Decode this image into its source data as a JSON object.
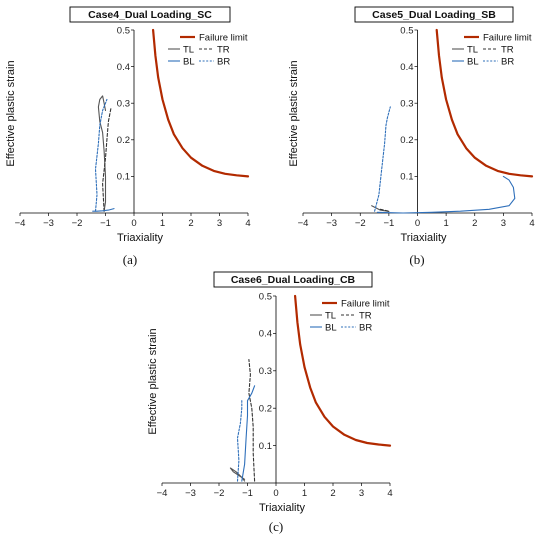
{
  "chart_data": [
    {
      "type": "line",
      "title": "Case4_Dual Loading_SC",
      "caption": "(a)",
      "xlabel": "Triaxiality",
      "ylabel": "Effective plastic strain",
      "xlim": [
        -4,
        4
      ],
      "ylim": [
        0,
        0.5
      ],
      "xticks": [
        -4,
        -3,
        -2,
        -1,
        0,
        1,
        2,
        3,
        4
      ],
      "yticks": [
        0.1,
        0.2,
        0.3,
        0.4,
        0.5
      ],
      "grid": false,
      "legend": {
        "placement": "top-right"
      },
      "series": [
        {
          "name": "Failure limit",
          "color": "#b22a00",
          "style": "solid",
          "x": [
            0.67,
            0.75,
            0.85,
            1.0,
            1.2,
            1.4,
            1.7,
            2.0,
            2.4,
            2.8,
            3.2,
            3.6,
            4.0
          ],
          "y": [
            0.5,
            0.43,
            0.37,
            0.31,
            0.255,
            0.215,
            0.177,
            0.151,
            0.129,
            0.115,
            0.107,
            0.103,
            0.1
          ]
        },
        {
          "name": "TL",
          "color": "#555555",
          "style": "solid",
          "x": [
            -1.05,
            -1.0,
            -1.0,
            -1.05,
            -1.1,
            -1.2,
            -1.25,
            -1.2,
            -1.1,
            -1.05,
            -1.0
          ],
          "y": [
            0.005,
            0.03,
            0.1,
            0.17,
            0.22,
            0.25,
            0.29,
            0.31,
            0.32,
            0.3,
            0.28
          ]
        },
        {
          "name": "TR",
          "color": "#333333",
          "style": "dashed",
          "x": [
            -1.05,
            -1.1,
            -1.0,
            -0.95,
            -0.9,
            -0.8
          ],
          "y": [
            0.005,
            0.08,
            0.15,
            0.2,
            0.25,
            0.29
          ]
        },
        {
          "name": "BL",
          "color": "#2e6fba",
          "style": "solid",
          "x": [
            -1.45,
            -1.3,
            -1.1,
            -0.9,
            -0.7
          ],
          "y": [
            0.005,
            0.005,
            0.006,
            0.008,
            0.012
          ]
        },
        {
          "name": "BR",
          "color": "#2e6fba",
          "style": "dotted",
          "x": [
            -1.35,
            -1.3,
            -1.35,
            -1.25,
            -1.2,
            -1.1,
            -0.95
          ],
          "y": [
            0.005,
            0.05,
            0.12,
            0.19,
            0.24,
            0.28,
            0.31
          ]
        }
      ]
    },
    {
      "type": "line",
      "title": "Case5_Dual Loading_SB",
      "caption": "(b)",
      "xlabel": "Triaxiality",
      "ylabel": "Effective plastic strain",
      "xlim": [
        -4,
        4
      ],
      "ylim": [
        0,
        0.5
      ],
      "xticks": [
        -4,
        -3,
        -2,
        -1,
        0,
        1,
        2,
        3,
        4
      ],
      "yticks": [
        0.1,
        0.2,
        0.3,
        0.4,
        0.5
      ],
      "grid": false,
      "legend": {
        "placement": "top-right"
      },
      "series": [
        {
          "name": "Failure limit",
          "color": "#b22a00",
          "style": "solid",
          "x": [
            0.67,
            0.75,
            0.85,
            1.0,
            1.2,
            1.4,
            1.7,
            2.0,
            2.4,
            2.8,
            3.2,
            3.6,
            4.0
          ],
          "y": [
            0.5,
            0.43,
            0.37,
            0.31,
            0.255,
            0.215,
            0.177,
            0.151,
            0.129,
            0.115,
            0.107,
            0.103,
            0.1
          ]
        },
        {
          "name": "TL",
          "color": "#555555",
          "style": "solid",
          "x": [
            -1.6,
            -1.3,
            -1.0
          ],
          "y": [
            0.02,
            0.008,
            0.004
          ]
        },
        {
          "name": "TR",
          "color": "#333333",
          "style": "dashed",
          "x": [
            -1.3,
            -1.0
          ],
          "y": [
            0.01,
            0.005
          ]
        },
        {
          "name": "BL",
          "color": "#2e6fba",
          "style": "solid",
          "x": [
            -1.4,
            -0.5,
            0.5,
            1.5,
            2.5,
            3.2,
            3.4,
            3.35,
            3.2,
            3.0
          ],
          "y": [
            0.002,
            0.0,
            0.002,
            0.005,
            0.01,
            0.02,
            0.04,
            0.07,
            0.09,
            0.1
          ]
        },
        {
          "name": "BR",
          "color": "#2e6fba",
          "style": "dotted",
          "x": [
            -1.5,
            -1.35,
            -1.25,
            -1.15,
            -1.1,
            -1.05,
            -0.95
          ],
          "y": [
            0.005,
            0.05,
            0.12,
            0.19,
            0.24,
            0.26,
            0.29
          ]
        }
      ]
    },
    {
      "type": "line",
      "title": "Case6_Dual Loading_CB",
      "caption": "(c)",
      "xlabel": "Triaxiality",
      "ylabel": "Effective plastic strain",
      "xlim": [
        -4,
        4
      ],
      "ylim": [
        0,
        0.5
      ],
      "xticks": [
        -4,
        -3,
        -2,
        -1,
        0,
        1,
        2,
        3,
        4
      ],
      "yticks": [
        0.1,
        0.2,
        0.3,
        0.4,
        0.5
      ],
      "grid": false,
      "legend": {
        "placement": "top-right"
      },
      "series": [
        {
          "name": "Failure limit",
          "color": "#b22a00",
          "style": "solid",
          "x": [
            0.67,
            0.75,
            0.85,
            1.0,
            1.2,
            1.4,
            1.7,
            2.0,
            2.4,
            2.8,
            3.2,
            3.6,
            4.0
          ],
          "y": [
            0.5,
            0.43,
            0.37,
            0.31,
            0.255,
            0.215,
            0.177,
            0.151,
            0.129,
            0.115,
            0.107,
            0.103,
            0.1
          ]
        },
        {
          "name": "TL",
          "color": "#555555",
          "style": "solid",
          "x": [
            -1.1,
            -1.3,
            -1.5,
            -1.6,
            -1.4,
            -1.2,
            -1.1
          ],
          "y": [
            0.01,
            0.02,
            0.03,
            0.04,
            0.03,
            0.015,
            0.005
          ]
        },
        {
          "name": "TR",
          "color": "#333333",
          "style": "dashed",
          "x": [
            -0.75,
            -0.8,
            -0.8,
            -0.85,
            -0.95,
            -0.9,
            -0.95
          ],
          "y": [
            0.005,
            0.08,
            0.15,
            0.2,
            0.24,
            0.29,
            0.33
          ]
        },
        {
          "name": "BL",
          "color": "#2e6fba",
          "style": "solid",
          "x": [
            -1.2,
            -1.1,
            -1.05,
            -1.0,
            -1.0,
            -0.85,
            -0.8,
            -0.75
          ],
          "y": [
            0.005,
            0.05,
            0.12,
            0.18,
            0.22,
            0.24,
            0.25,
            0.26
          ]
        },
        {
          "name": "BR",
          "color": "#2e6fba",
          "style": "dotted",
          "x": [
            -1.35,
            -1.3,
            -1.35,
            -1.25,
            -1.2,
            -1.2
          ],
          "y": [
            0.005,
            0.06,
            0.12,
            0.16,
            0.2,
            0.22
          ]
        }
      ]
    }
  ]
}
